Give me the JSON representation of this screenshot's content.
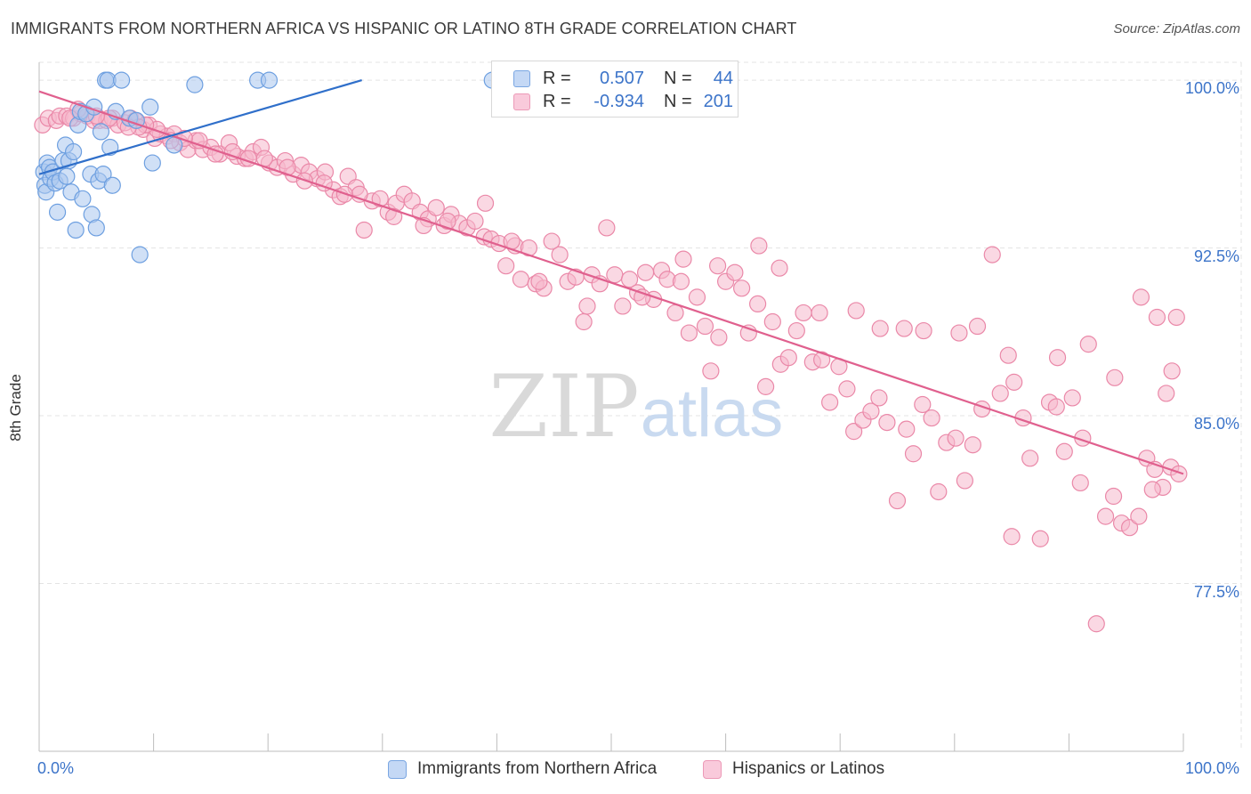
{
  "title": "IMMIGRANTS FROM NORTHERN AFRICA VS HISPANIC OR LATINO 8TH GRADE CORRELATION CHART",
  "source": "Source: ZipAtlas.com",
  "watermark": {
    "zip": "ZIP",
    "atlas": "atlas"
  },
  "legend": {
    "series_a": {
      "r_label": "R =",
      "r_value": "0.507",
      "n_label": "N =",
      "n_value": "44"
    },
    "series_b": {
      "r_label": "R =",
      "r_value": "-0.934",
      "n_label": "N =",
      "n_value": "201"
    }
  },
  "colors": {
    "blue_fill": "#a9c6ef",
    "blue_stroke": "#6d9fe0",
    "blue_line": "#2f6fca",
    "pink_fill": "#f6b8cc",
    "pink_stroke": "#ea88a8",
    "pink_line": "#e0608e",
    "tick_text_blue": "#3c74c9",
    "grid": "#e3e3e3"
  },
  "chart_data": {
    "type": "scatter",
    "title": "IMMIGRANTS FROM NORTHERN AFRICA VS HISPANIC OR LATINO 8TH GRADE CORRELATION CHART",
    "xlabel": "",
    "ylabel": "8th Grade",
    "xlim": [
      0,
      100
    ],
    "ylim": [
      70.0,
      100.8
    ],
    "x_tick_labels": [
      "0.0%",
      "100.0%"
    ],
    "y_ticks": [
      77.5,
      85.0,
      92.5,
      100.0
    ],
    "y_tick_labels": [
      "77.5%",
      "85.0%",
      "92.5%",
      "100.0%"
    ],
    "grid": true,
    "legend_position": "top-center",
    "series": [
      {
        "name": "Immigrants from Northern Africa",
        "color": "#a9c6ef",
        "trend": {
          "x": [
            0.0,
            28.2
          ],
          "y": [
            95.8,
            100.0
          ]
        },
        "points": [
          [
            0.4,
            95.9
          ],
          [
            0.5,
            95.3
          ],
          [
            0.6,
            95.0
          ],
          [
            0.7,
            96.3
          ],
          [
            0.9,
            96.1
          ],
          [
            1.0,
            95.6
          ],
          [
            1.2,
            95.9
          ],
          [
            1.4,
            95.4
          ],
          [
            1.6,
            94.1
          ],
          [
            1.8,
            95.5
          ],
          [
            2.1,
            96.4
          ],
          [
            2.3,
            97.1
          ],
          [
            2.4,
            95.7
          ],
          [
            2.6,
            96.4
          ],
          [
            2.8,
            95.0
          ],
          [
            3.0,
            96.8
          ],
          [
            3.2,
            93.3
          ],
          [
            3.4,
            98.0
          ],
          [
            3.6,
            98.6
          ],
          [
            3.8,
            94.7
          ],
          [
            4.1,
            98.5
          ],
          [
            4.5,
            95.8
          ],
          [
            4.6,
            94.0
          ],
          [
            4.8,
            98.8
          ],
          [
            5.0,
            93.4
          ],
          [
            5.2,
            95.5
          ],
          [
            5.4,
            97.7
          ],
          [
            5.6,
            95.8
          ],
          [
            5.8,
            100.0
          ],
          [
            6.0,
            100.0
          ],
          [
            6.2,
            97.0
          ],
          [
            6.4,
            95.3
          ],
          [
            6.7,
            98.6
          ],
          [
            7.2,
            100.0
          ],
          [
            7.9,
            98.3
          ],
          [
            8.5,
            98.2
          ],
          [
            8.8,
            92.2
          ],
          [
            9.7,
            98.8
          ],
          [
            9.9,
            96.3
          ],
          [
            11.8,
            97.1
          ],
          [
            13.6,
            99.8
          ],
          [
            19.1,
            100.0
          ],
          [
            20.1,
            100.0
          ],
          [
            39.6,
            100.0
          ]
        ]
      },
      {
        "name": "Hispanics or Latinos",
        "color": "#f6b8cc",
        "trend": {
          "x": [
            0.0,
            100.0
          ],
          "y": [
            99.5,
            82.4
          ]
        },
        "points": [
          [
            0.3,
            98.0
          ],
          [
            0.8,
            98.3
          ],
          [
            1.5,
            98.2
          ],
          [
            1.8,
            98.4
          ],
          [
            2.4,
            98.4
          ],
          [
            3.0,
            98.3
          ],
          [
            3.6,
            98.5
          ],
          [
            4.2,
            98.4
          ],
          [
            4.8,
            98.2
          ],
          [
            5.3,
            98.2
          ],
          [
            5.9,
            98.2
          ],
          [
            6.4,
            98.3
          ],
          [
            6.9,
            98.0
          ],
          [
            7.5,
            98.1
          ],
          [
            8.0,
            98.3
          ],
          [
            8.4,
            98.2
          ],
          [
            9.1,
            97.8
          ],
          [
            9.6,
            98.0
          ],
          [
            10.1,
            97.4
          ],
          [
            10.6,
            97.6
          ],
          [
            11.2,
            97.5
          ],
          [
            11.8,
            97.6
          ],
          [
            12.3,
            97.2
          ],
          [
            13.0,
            96.9
          ],
          [
            13.7,
            97.3
          ],
          [
            14.3,
            96.9
          ],
          [
            15.0,
            97.0
          ],
          [
            15.8,
            96.7
          ],
          [
            16.6,
            97.2
          ],
          [
            17.3,
            96.6
          ],
          [
            18.0,
            96.5
          ],
          [
            18.7,
            96.8
          ],
          [
            19.4,
            97.0
          ],
          [
            20.1,
            96.3
          ],
          [
            20.8,
            96.1
          ],
          [
            21.5,
            96.4
          ],
          [
            22.2,
            95.8
          ],
          [
            22.9,
            96.2
          ],
          [
            23.6,
            95.9
          ],
          [
            24.3,
            95.6
          ],
          [
            25.0,
            95.9
          ],
          [
            25.7,
            95.1
          ],
          [
            26.3,
            94.8
          ],
          [
            27.0,
            95.7
          ],
          [
            27.7,
            95.2
          ],
          [
            28.4,
            93.3
          ],
          [
            29.1,
            94.6
          ],
          [
            29.8,
            94.7
          ],
          [
            30.5,
            94.1
          ],
          [
            31.2,
            94.5
          ],
          [
            31.9,
            94.9
          ],
          [
            32.6,
            94.6
          ],
          [
            33.3,
            94.1
          ],
          [
            34.0,
            93.8
          ],
          [
            34.7,
            94.3
          ],
          [
            35.4,
            93.5
          ],
          [
            36.0,
            94.0
          ],
          [
            36.7,
            93.6
          ],
          [
            37.4,
            93.4
          ],
          [
            38.1,
            93.7
          ],
          [
            38.9,
            93.0
          ],
          [
            39.5,
            92.9
          ],
          [
            40.2,
            92.7
          ],
          [
            40.8,
            91.7
          ],
          [
            41.6,
            92.6
          ],
          [
            42.1,
            91.1
          ],
          [
            42.8,
            92.5
          ],
          [
            43.4,
            90.9
          ],
          [
            44.1,
            90.7
          ],
          [
            44.8,
            92.8
          ],
          [
            45.5,
            92.2
          ],
          [
            46.2,
            91.0
          ],
          [
            46.9,
            91.2
          ],
          [
            47.6,
            89.2
          ],
          [
            48.3,
            91.3
          ],
          [
            49.0,
            90.9
          ],
          [
            49.6,
            93.4
          ],
          [
            50.3,
            91.3
          ],
          [
            51.0,
            89.9
          ],
          [
            51.6,
            91.1
          ],
          [
            52.3,
            90.5
          ],
          [
            53.0,
            91.4
          ],
          [
            53.7,
            90.2
          ],
          [
            54.4,
            91.5
          ],
          [
            54.9,
            91.1
          ],
          [
            55.6,
            89.6
          ],
          [
            56.1,
            91.0
          ],
          [
            56.8,
            88.7
          ],
          [
            57.5,
            90.3
          ],
          [
            58.2,
            89.0
          ],
          [
            58.7,
            87.0
          ],
          [
            59.4,
            88.5
          ],
          [
            60.0,
            91.0
          ],
          [
            60.8,
            91.4
          ],
          [
            61.4,
            90.7
          ],
          [
            62.0,
            88.7
          ],
          [
            62.8,
            90.0
          ],
          [
            63.5,
            86.3
          ],
          [
            64.1,
            89.2
          ],
          [
            64.8,
            87.3
          ],
          [
            65.5,
            87.6
          ],
          [
            66.2,
            88.8
          ],
          [
            66.8,
            89.6
          ],
          [
            67.6,
            87.4
          ],
          [
            68.4,
            87.5
          ],
          [
            69.1,
            85.6
          ],
          [
            69.9,
            87.2
          ],
          [
            70.6,
            86.2
          ],
          [
            71.2,
            84.3
          ],
          [
            72.0,
            84.8
          ],
          [
            72.7,
            85.2
          ],
          [
            73.4,
            85.8
          ],
          [
            74.1,
            84.7
          ],
          [
            75.0,
            81.2
          ],
          [
            75.8,
            84.4
          ],
          [
            76.4,
            83.3
          ],
          [
            77.2,
            85.5
          ],
          [
            78.0,
            84.9
          ],
          [
            78.6,
            81.6
          ],
          [
            79.3,
            83.8
          ],
          [
            80.1,
            84.0
          ],
          [
            80.9,
            82.1
          ],
          [
            81.6,
            83.7
          ],
          [
            82.4,
            85.3
          ],
          [
            83.3,
            92.2
          ],
          [
            84.0,
            86.0
          ],
          [
            84.7,
            87.7
          ],
          [
            85.2,
            86.5
          ],
          [
            86.0,
            84.9
          ],
          [
            86.6,
            83.1
          ],
          [
            87.5,
            79.5
          ],
          [
            88.3,
            85.6
          ],
          [
            88.9,
            85.4
          ],
          [
            89.6,
            83.4
          ],
          [
            90.3,
            85.8
          ],
          [
            91.0,
            82.0
          ],
          [
            91.7,
            88.2
          ],
          [
            92.4,
            75.7
          ],
          [
            93.2,
            80.5
          ],
          [
            93.9,
            81.4
          ],
          [
            94.6,
            80.2
          ],
          [
            95.3,
            80.0
          ],
          [
            96.1,
            80.5
          ],
          [
            96.8,
            83.1
          ],
          [
            97.5,
            82.6
          ],
          [
            98.2,
            81.8
          ],
          [
            98.9,
            82.7
          ],
          [
            99.6,
            82.4
          ],
          [
            85.0,
            79.6
          ],
          [
            97.3,
            81.7
          ],
          [
            94.0,
            86.7
          ],
          [
            91.2,
            84.0
          ],
          [
            99.0,
            87.0
          ],
          [
            98.5,
            86.0
          ],
          [
            97.7,
            89.4
          ],
          [
            96.3,
            90.3
          ],
          [
            80.4,
            88.7
          ],
          [
            77.3,
            88.8
          ],
          [
            73.5,
            88.9
          ],
          [
            68.2,
            89.6
          ],
          [
            64.7,
            91.6
          ],
          [
            62.9,
            92.6
          ],
          [
            59.3,
            91.7
          ],
          [
            56.3,
            92.0
          ],
          [
            52.7,
            90.3
          ],
          [
            47.9,
            89.9
          ],
          [
            43.7,
            91.0
          ],
          [
            41.3,
            92.8
          ],
          [
            39.0,
            94.5
          ],
          [
            35.7,
            93.7
          ],
          [
            33.6,
            93.5
          ],
          [
            31.0,
            93.9
          ],
          [
            28.0,
            94.9
          ],
          [
            26.7,
            94.9
          ],
          [
            24.9,
            95.4
          ],
          [
            23.2,
            95.5
          ],
          [
            21.7,
            96.1
          ],
          [
            19.7,
            96.5
          ],
          [
            18.3,
            96.5
          ],
          [
            16.9,
            96.8
          ],
          [
            15.4,
            96.7
          ],
          [
            14.0,
            97.3
          ],
          [
            12.7,
            97.4
          ],
          [
            11.5,
            97.3
          ],
          [
            10.3,
            97.8
          ],
          [
            9.3,
            98.0
          ],
          [
            8.7,
            97.9
          ],
          [
            7.8,
            97.9
          ],
          [
            6.1,
            98.3
          ],
          [
            5.0,
            98.4
          ],
          [
            3.4,
            98.7
          ],
          [
            2.7,
            98.3
          ],
          [
            99.4,
            89.4
          ],
          [
            89.0,
            87.6
          ],
          [
            82.0,
            89.0
          ],
          [
            75.6,
            88.9
          ],
          [
            71.4,
            89.7
          ]
        ]
      }
    ]
  },
  "bottom_legend": {
    "series_a_label": "Immigrants from Northern Africa",
    "series_b_label": "Hispanics or Latinos"
  }
}
